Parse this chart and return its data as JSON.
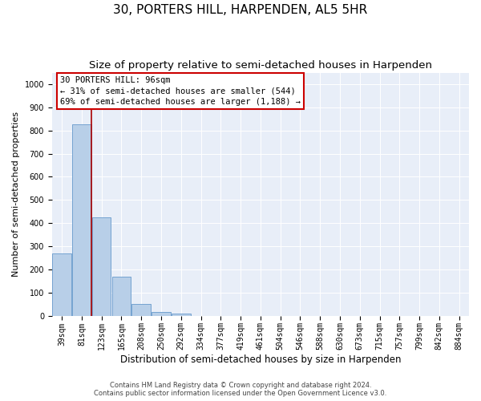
{
  "title": "30, PORTERS HILL, HARPENDEN, AL5 5HR",
  "subtitle": "Size of property relative to semi-detached houses in Harpenden",
  "xlabel": "Distribution of semi-detached houses by size in Harpenden",
  "ylabel": "Number of semi-detached properties",
  "categories": [
    "39sqm",
    "81sqm",
    "123sqm",
    "165sqm",
    "208sqm",
    "250sqm",
    "292sqm",
    "334sqm",
    "377sqm",
    "419sqm",
    "461sqm",
    "504sqm",
    "546sqm",
    "588sqm",
    "630sqm",
    "673sqm",
    "715sqm",
    "757sqm",
    "799sqm",
    "842sqm",
    "884sqm"
  ],
  "values": [
    270,
    825,
    425,
    168,
    50,
    15,
    10,
    0,
    0,
    0,
    0,
    0,
    0,
    0,
    0,
    0,
    0,
    0,
    0,
    0,
    0
  ],
  "bar_color": "#b8cfe8",
  "bar_edge_color": "#6699cc",
  "property_line_x": 1.5,
  "property_line_color": "#aa0000",
  "annotation_text": "30 PORTERS HILL: 96sqm\n← 31% of semi-detached houses are smaller (544)\n69% of semi-detached houses are larger (1,188) →",
  "annotation_box_facecolor": "#ffffff",
  "annotation_box_edgecolor": "#cc0000",
  "ylim": [
    0,
    1050
  ],
  "yticks": [
    0,
    100,
    200,
    300,
    400,
    500,
    600,
    700,
    800,
    900,
    1000
  ],
  "plot_bg_color": "#e8eef8",
  "footer_line1": "Contains HM Land Registry data © Crown copyright and database right 2024.",
  "footer_line2": "Contains public sector information licensed under the Open Government Licence v3.0.",
  "title_fontsize": 11,
  "subtitle_fontsize": 9.5,
  "ylabel_fontsize": 8,
  "xlabel_fontsize": 8.5,
  "tick_fontsize": 7,
  "annotation_fontsize": 7.5,
  "footer_fontsize": 6
}
